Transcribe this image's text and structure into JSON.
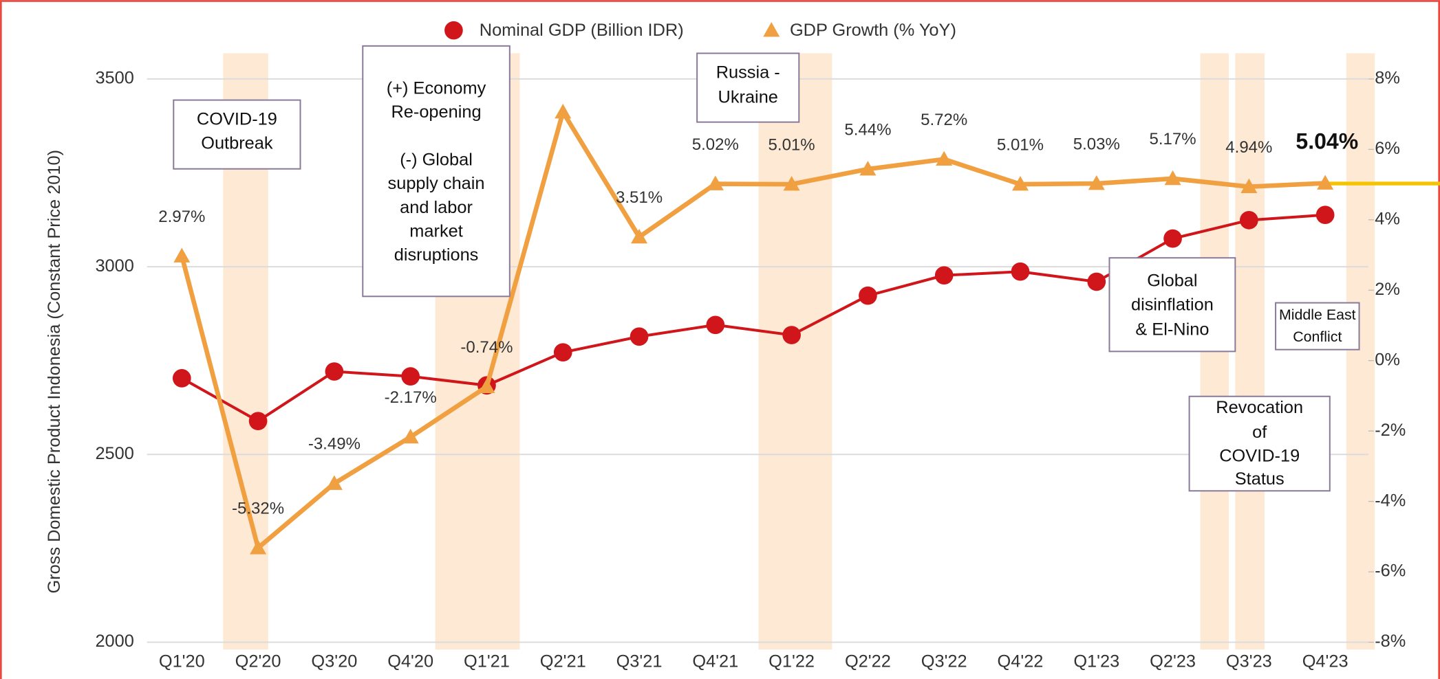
{
  "chart_data": {
    "type": "line",
    "categories": [
      "Q1'20",
      "Q2'20",
      "Q3'20",
      "Q4'20",
      "Q1'21",
      "Q2'21",
      "Q3'21",
      "Q4'21",
      "Q1'22",
      "Q2'22",
      "Q3'22",
      "Q4'22",
      "Q1'23",
      "Q2'23",
      "Q3'23",
      "Q4'23"
    ],
    "series": [
      {
        "name": "Nominal GDP (Billion IDR)",
        "color": "#d0161b",
        "marker": "circle",
        "values": [
          2703,
          2589,
          2721,
          2708,
          2684,
          2772,
          2814,
          2845,
          2818,
          2923,
          2977,
          2987,
          2960,
          3075,
          3124,
          3138
        ]
      },
      {
        "name": "GDP Growth (%  YoY)",
        "color": "#f0a040",
        "marker": "triangle",
        "axis": "y2",
        "values": [
          2.97,
          -5.32,
          -3.49,
          -2.17,
          -0.74,
          7.06,
          3.51,
          5.02,
          5.01,
          5.44,
          5.72,
          5.01,
          5.03,
          5.17,
          4.94,
          5.04
        ],
        "value_labels": [
          "2.97%",
          "-5.32%",
          "-3.49%",
          "-2.17%",
          "-0.74%",
          null,
          "3.51%",
          "5.02%",
          "5.01%",
          "5.44%",
          "5.72%",
          "5.01%",
          "5.03%",
          "5.17%",
          "4.94%",
          "5.04%"
        ]
      }
    ],
    "y_label": "Gross Domestic Product Indonesia (Constant Price 2010)",
    "ylim": [
      2000,
      3500
    ],
    "yticks": [
      2000,
      2500,
      3000,
      3500
    ],
    "y2lim": [
      -8,
      8
    ],
    "y2ticks": [
      {
        "value": -8,
        "label": "-8%"
      },
      {
        "value": -6,
        "label": "-6%"
      },
      {
        "value": -4,
        "label": "-4%"
      },
      {
        "value": -2,
        "label": "-2%"
      },
      {
        "value": 0,
        "label": "0%"
      },
      {
        "value": 2,
        "label": "2%"
      },
      {
        "value": 4,
        "label": "4%"
      },
      {
        "value": 6,
        "label": "6%"
      },
      {
        "value": 8,
        "label": "8%"
      }
    ],
    "grid": true,
    "legend": "top",
    "annotations": [
      [
        "COVID-19",
        "Outbreak"
      ],
      [
        "(+) Economy",
        "Re-opening",
        "(-) Global",
        "supply chain",
        "and labor",
        "market",
        "disruptions"
      ],
      [
        "Russia -",
        "Ukraine"
      ],
      [
        "Global",
        "disinflation",
        "& El-Nino"
      ],
      [
        "Middle East",
        "Conflict"
      ],
      [
        "Revocation",
        "of",
        "COVID-19",
        "Status"
      ]
    ]
  }
}
